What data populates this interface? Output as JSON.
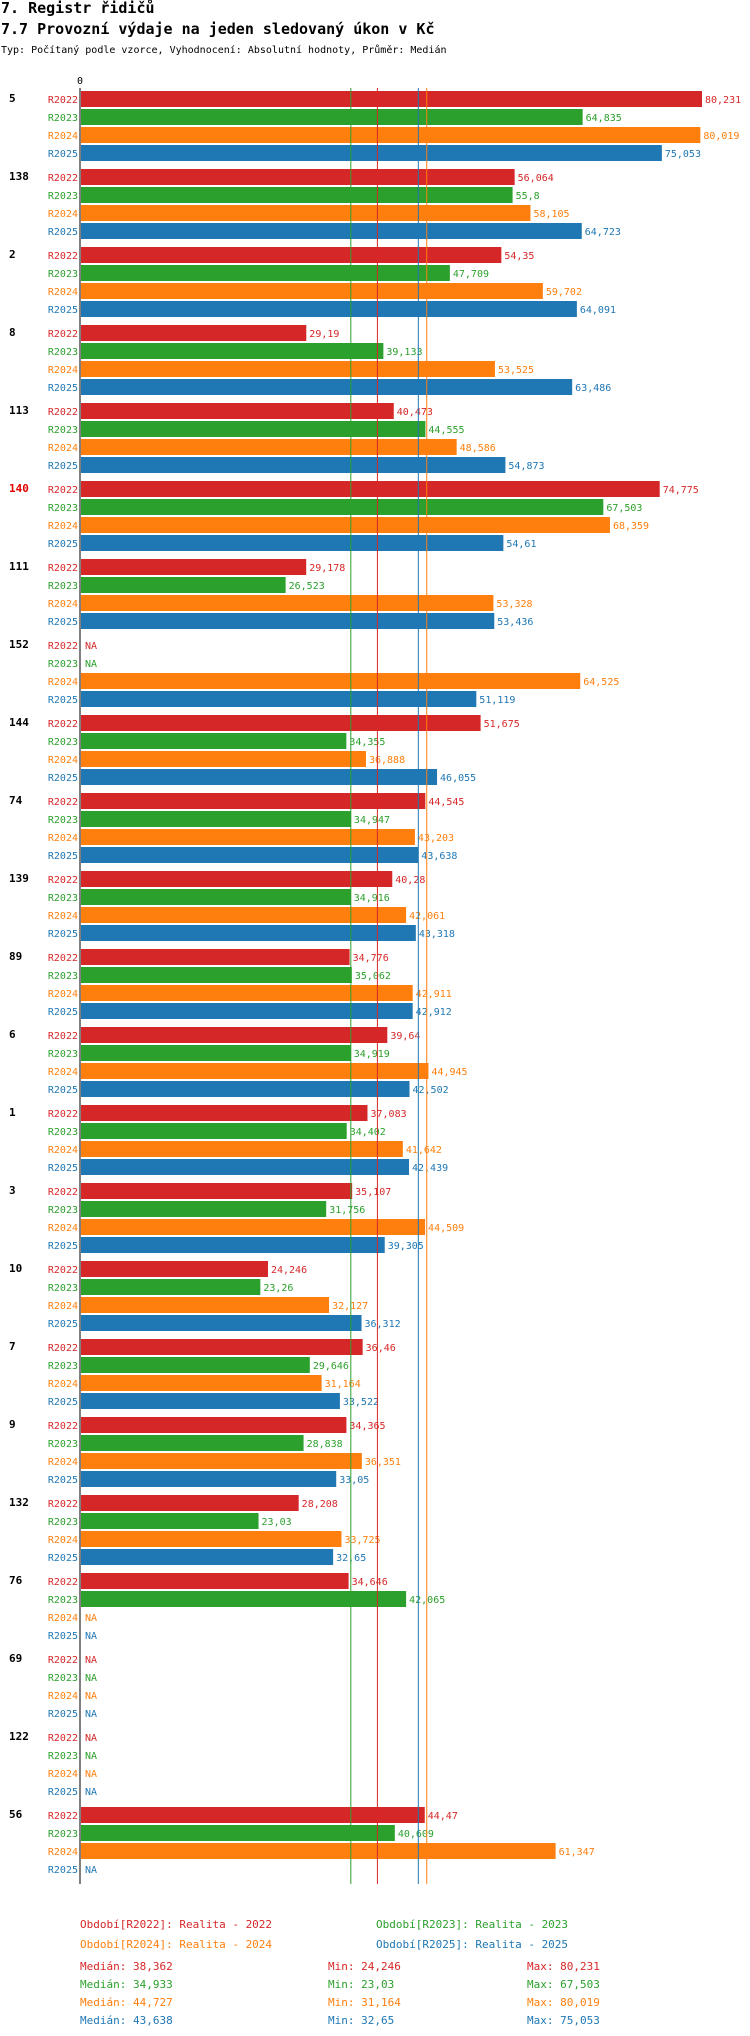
{
  "header": {
    "title": "7. Registr řidičů",
    "subtitle": "7.7 Provozní výdaje na jeden sledovaný úkon v Kč",
    "params": "Typ: Počítaný podle vzorce, Vyhodnocení: Absolutní hodnoty, Průměr: Medián"
  },
  "chart_data": {
    "type": "bar",
    "orientation": "horizontal",
    "axis_zero_label": "0",
    "xlim": [
      0,
      80.231
    ],
    "na_label": "NA",
    "series": [
      {
        "name": "R2022",
        "color": "#d62728"
      },
      {
        "name": "R2023",
        "color": "#2ca02c"
      },
      {
        "name": "R2024",
        "color": "#ff7f0e"
      },
      {
        "name": "R2025",
        "color": "#1f77b4"
      }
    ],
    "groups": [
      {
        "label": "5",
        "highlight": false,
        "values": [
          80.231,
          64.835,
          80.019,
          75.053
        ],
        "labels": [
          "80,231",
          "64,835",
          "80,019",
          "75,053"
        ]
      },
      {
        "label": "138",
        "highlight": false,
        "values": [
          56.064,
          55.8,
          58.105,
          64.723
        ],
        "labels": [
          "56,064",
          "55,8",
          "58,105",
          "64,723"
        ]
      },
      {
        "label": "2",
        "highlight": false,
        "values": [
          54.35,
          47.709,
          59.702,
          64.091
        ],
        "labels": [
          "54,35",
          "47,709",
          "59,702",
          "64,091"
        ]
      },
      {
        "label": "8",
        "highlight": false,
        "values": [
          29.19,
          39.133,
          53.525,
          63.486
        ],
        "labels": [
          "29,19",
          "39,133",
          "53,525",
          "63,486"
        ]
      },
      {
        "label": "113",
        "highlight": false,
        "values": [
          40.473,
          44.555,
          48.586,
          54.873
        ],
        "labels": [
          "40,473",
          "44,555",
          "48,586",
          "54,873"
        ]
      },
      {
        "label": "140",
        "highlight": true,
        "values": [
          74.775,
          67.503,
          68.359,
          54.61
        ],
        "labels": [
          "74,775",
          "67,503",
          "68,359",
          "54,61"
        ]
      },
      {
        "label": "111",
        "highlight": false,
        "values": [
          29.178,
          26.523,
          53.328,
          53.436
        ],
        "labels": [
          "29,178",
          "26,523",
          "53,328",
          "53,436"
        ]
      },
      {
        "label": "152",
        "highlight": false,
        "values": [
          null,
          null,
          64.525,
          51.119
        ],
        "labels": [
          "NA",
          "NA",
          "64,525",
          "51,119"
        ]
      },
      {
        "label": "144",
        "highlight": false,
        "values": [
          51.675,
          34.355,
          36.888,
          46.055
        ],
        "labels": [
          "51,675",
          "34,355",
          "36,888",
          "46,055"
        ]
      },
      {
        "label": "74",
        "highlight": false,
        "values": [
          44.545,
          34.947,
          43.203,
          43.638
        ],
        "labels": [
          "44,545",
          "34,947",
          "43,203",
          "43,638"
        ]
      },
      {
        "label": "139",
        "highlight": false,
        "values": [
          40.28,
          34.916,
          42.061,
          43.318
        ],
        "labels": [
          "40,28",
          "34,916",
          "42,061",
          "43,318"
        ]
      },
      {
        "label": "89",
        "highlight": false,
        "values": [
          34.776,
          35.062,
          42.911,
          42.912
        ],
        "labels": [
          "34,776",
          "35,062",
          "42,911",
          "42,912"
        ]
      },
      {
        "label": "6",
        "highlight": false,
        "values": [
          39.64,
          34.919,
          44.945,
          42.502
        ],
        "labels": [
          "39,64",
          "34,919",
          "44,945",
          "42,502"
        ]
      },
      {
        "label": "1",
        "highlight": false,
        "values": [
          37.083,
          34.402,
          41.642,
          42.439
        ],
        "labels": [
          "37,083",
          "34,402",
          "41,642",
          "42,439"
        ]
      },
      {
        "label": "3",
        "highlight": false,
        "values": [
          35.107,
          31.756,
          44.509,
          39.305
        ],
        "labels": [
          "35,107",
          "31,756",
          "44,509",
          "39,305"
        ]
      },
      {
        "label": "10",
        "highlight": false,
        "values": [
          24.246,
          23.26,
          32.127,
          36.312
        ],
        "labels": [
          "24,246",
          "23,26",
          "32,127",
          "36,312"
        ]
      },
      {
        "label": "7",
        "highlight": false,
        "values": [
          36.46,
          29.646,
          31.164,
          33.522
        ],
        "labels": [
          "36,46",
          "29,646",
          "31,164",
          "33,522"
        ]
      },
      {
        "label": "9",
        "highlight": false,
        "values": [
          34.365,
          28.838,
          36.351,
          33.05
        ],
        "labels": [
          "34,365",
          "28,838",
          "36,351",
          "33,05"
        ]
      },
      {
        "label": "132",
        "highlight": false,
        "values": [
          28.208,
          23.03,
          33.725,
          32.65
        ],
        "labels": [
          "28,208",
          "23,03",
          "33,725",
          "32,65"
        ]
      },
      {
        "label": "76",
        "highlight": false,
        "values": [
          34.646,
          42.065,
          null,
          null
        ],
        "labels": [
          "34,646",
          "42,065",
          "NA",
          "NA"
        ]
      },
      {
        "label": "69",
        "highlight": false,
        "values": [
          null,
          null,
          null,
          null
        ],
        "labels": [
          "NA",
          "NA",
          "NA",
          "NA"
        ]
      },
      {
        "label": "122",
        "highlight": false,
        "values": [
          null,
          null,
          null,
          null
        ],
        "labels": [
          "NA",
          "NA",
          "NA",
          "NA"
        ]
      },
      {
        "label": "56",
        "highlight": false,
        "values": [
          44.47,
          40.609,
          61.347,
          null
        ],
        "labels": [
          "44,47",
          "40,609",
          "61,347",
          "NA"
        ]
      }
    ],
    "reference_lines": [
      {
        "series": "R2023",
        "value": 34.933
      },
      {
        "series": "R2022",
        "value": 38.362
      },
      {
        "series": "R2025",
        "value": 43.638
      },
      {
        "series": "R2024",
        "value": 44.727
      }
    ],
    "legend": [
      {
        "text": "Období[R2022]: Realita - 2022",
        "color": "#d62728"
      },
      {
        "text": "Období[R2023]: Realita - 2023",
        "color": "#2ca02c"
      },
      {
        "text": "Období[R2024]: Realita - 2024",
        "color": "#ff7f0e"
      },
      {
        "text": "Období[R2025]: Realita - 2025",
        "color": "#1f77b4"
      }
    ],
    "stats": [
      {
        "median": "Medián: 38,362",
        "min": "Min: 24,246",
        "max": "Max: 80,231",
        "color": "#d62728"
      },
      {
        "median": "Medián: 34,933",
        "min": "Min: 23,03",
        "max": "Max: 67,503",
        "color": "#2ca02c"
      },
      {
        "median": "Medián: 44,727",
        "min": "Min: 31,164",
        "max": "Max: 80,019",
        "color": "#ff7f0e"
      },
      {
        "median": "Medián: 43,638",
        "min": "Min: 32,65",
        "max": "Max: 75,053",
        "color": "#1f77b4"
      }
    ]
  }
}
